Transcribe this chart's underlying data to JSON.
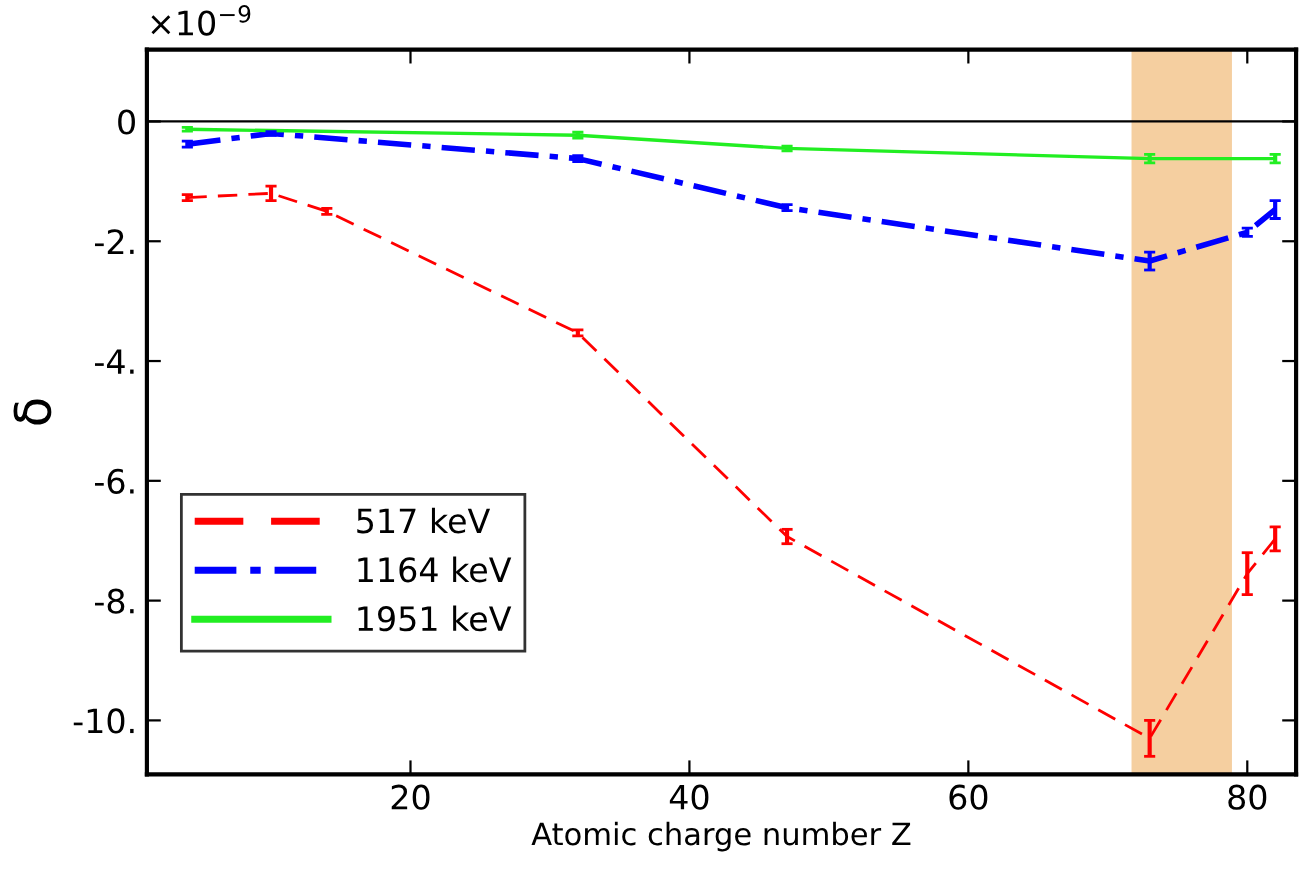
{
  "chart_data": {
    "type": "line",
    "xlabel": "Atomic charge number Z",
    "ylabel": "δ",
    "annotations": [
      "×10$^{−9}$"
    ],
    "xlim": [
      1.1,
      83.5
    ],
    "xticks": [
      20,
      40,
      60,
      80
    ],
    "ylim": [
      -10.9,
      1.2
    ],
    "yticks": [
      {
        "value": -10,
        "label": "-10."
      },
      {
        "value": -8,
        "label": "-8."
      },
      {
        "value": -6,
        "label": "-6."
      },
      {
        "value": -4,
        "label": "-4."
      },
      {
        "value": -2,
        "label": "-2."
      },
      0
    ],
    "legend": "bottom left",
    "grid": false,
    "marker": "none",
    "ref_lines": [
      {
        "axis": "y",
        "value": 0,
        "color": "#000000",
        "line_style": "solid"
      }
    ],
    "bands": [
      {
        "axis": "x",
        "from": 71.7,
        "to": 78.9,
        "color": "#f5cfa0"
      }
    ],
    "series": [
      {
        "name": "517 keV",
        "color": "#ff0000",
        "line_style": "dashed",
        "x": [
          4,
          10,
          14,
          32,
          47,
          73,
          80,
          82
        ],
        "values": [
          -1.27,
          -1.2,
          -1.5,
          -3.53,
          -6.93,
          -10.3,
          -7.55,
          -6.97
        ],
        "errors": [
          0.05,
          0.12,
          0.05,
          0.05,
          0.12,
          0.3,
          0.35,
          0.2
        ]
      },
      {
        "name": "1164 keV",
        "color": "#0000ff",
        "line_style": "dashdot",
        "x": [
          4,
          10,
          32,
          47,
          73,
          80,
          82
        ],
        "values": [
          -0.38,
          -0.2,
          -0.62,
          -1.44,
          -2.33,
          -1.85,
          -1.47
        ],
        "errors": [
          0.05,
          0.03,
          0.05,
          0.05,
          0.15,
          0.07,
          0.15
        ]
      },
      {
        "name": "1951 keV",
        "color": "#22ee22",
        "line_style": "solid",
        "x": [
          4,
          32,
          47,
          73,
          82
        ],
        "values": [
          -0.13,
          -0.23,
          -0.45,
          -0.62,
          -0.62
        ],
        "errors": [
          0.03,
          0.05,
          0.04,
          0.07,
          0.07
        ]
      }
    ]
  }
}
